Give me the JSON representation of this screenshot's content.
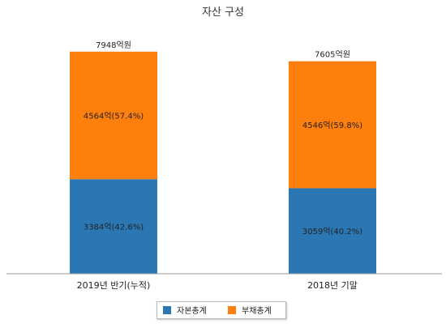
{
  "chart_data": {
    "type": "bar",
    "stacked": true,
    "title": "자산 구성",
    "categories": [
      "2019년 반기(누적)",
      "2018년 기말"
    ],
    "totals": [
      7948,
      7605
    ],
    "total_labels": [
      "7948억원",
      "7605억원"
    ],
    "unit": "억원",
    "series": [
      {
        "name": "자본총계",
        "color": "#2b77b3",
        "values": [
          3384,
          3059
        ],
        "labels": [
          "3384억(42.6%)",
          "3059억(40.2%)"
        ]
      },
      {
        "name": "부채총계",
        "color": "#ff7f0e",
        "values": [
          4564,
          4546
        ],
        "labels": [
          "4564억(57.4%)",
          "4546억(59.8%)"
        ]
      }
    ],
    "legend_position": "bottom",
    "grid": false
  }
}
